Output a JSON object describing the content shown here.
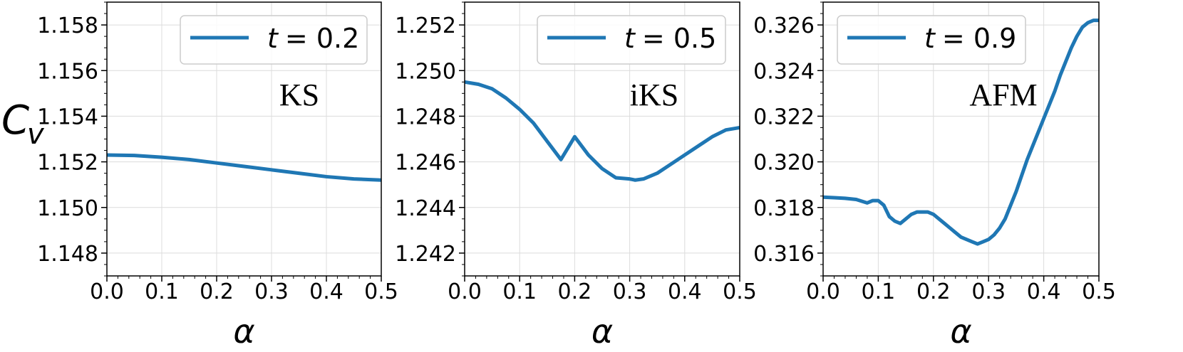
{
  "figure": {
    "ylabel_main": "C",
    "ylabel_sub": "v",
    "xlabel": "α"
  },
  "chart_data": [
    {
      "type": "line",
      "legend": "t = 0.2",
      "legend_var": "t",
      "legend_value": "= 0.2",
      "annotation": "KS",
      "xlabel": "α",
      "xlim": [
        0.0,
        0.5
      ],
      "ylim": [
        1.147,
        1.159
      ],
      "xticks": [
        "0.0",
        "0.1",
        "0.2",
        "0.3",
        "0.4",
        "0.5"
      ],
      "yticks": [
        "1.148",
        "1.150",
        "1.152",
        "1.154",
        "1.156",
        "1.158"
      ],
      "legend_location": "upper right",
      "grid": true,
      "color": "#1f77b4",
      "series": [
        {
          "x": [
            0.0,
            0.05,
            0.1,
            0.15,
            0.2,
            0.25,
            0.3,
            0.35,
            0.4,
            0.45,
            0.5
          ],
          "y": [
            1.1523,
            1.15228,
            1.1522,
            1.1521,
            1.15195,
            1.1518,
            1.15165,
            1.1515,
            1.15135,
            1.15125,
            1.1512
          ]
        }
      ]
    },
    {
      "type": "line",
      "legend": "t = 0.5",
      "legend_var": "t",
      "legend_value": "= 0.5",
      "annotation": "iKS",
      "xlabel": "α",
      "xlim": [
        0.0,
        0.5
      ],
      "ylim": [
        1.241,
        1.253
      ],
      "xticks": [
        "0.0",
        "0.1",
        "0.2",
        "0.3",
        "0.4",
        "0.5"
      ],
      "yticks": [
        "1.242",
        "1.244",
        "1.246",
        "1.248",
        "1.250",
        "1.252"
      ],
      "legend_location": "upper right",
      "grid": true,
      "color": "#1f77b4",
      "series": [
        {
          "x": [
            0.0,
            0.025,
            0.05,
            0.075,
            0.1,
            0.125,
            0.15,
            0.175,
            0.2,
            0.225,
            0.25,
            0.275,
            0.3,
            0.31,
            0.325,
            0.35,
            0.375,
            0.4,
            0.425,
            0.45,
            0.475,
            0.5
          ],
          "y": [
            1.2495,
            1.2494,
            1.2492,
            1.2488,
            1.2483,
            1.2477,
            1.2469,
            1.2461,
            1.2471,
            1.2463,
            1.2457,
            1.2453,
            1.24525,
            1.2452,
            1.24525,
            1.2455,
            1.2459,
            1.2463,
            1.2467,
            1.2471,
            1.2474,
            1.2475
          ]
        }
      ]
    },
    {
      "type": "line",
      "legend": "t = 0.9",
      "legend_var": "t",
      "legend_value": "= 0.9",
      "annotation": "AFM",
      "xlabel": "α",
      "xlim": [
        0.0,
        0.5
      ],
      "ylim": [
        0.315,
        0.327
      ],
      "xticks": [
        "0.0",
        "0.1",
        "0.2",
        "0.3",
        "0.4",
        "0.5"
      ],
      "yticks": [
        "0.316",
        "0.318",
        "0.320",
        "0.322",
        "0.324",
        "0.326"
      ],
      "legend_location": "upper left",
      "grid": true,
      "color": "#1f77b4",
      "series": [
        {
          "x": [
            0.0,
            0.02,
            0.04,
            0.06,
            0.08,
            0.09,
            0.1,
            0.11,
            0.12,
            0.13,
            0.14,
            0.15,
            0.16,
            0.17,
            0.18,
            0.19,
            0.2,
            0.21,
            0.22,
            0.23,
            0.24,
            0.25,
            0.26,
            0.27,
            0.28,
            0.29,
            0.3,
            0.31,
            0.32,
            0.33,
            0.34,
            0.35,
            0.36,
            0.37,
            0.38,
            0.39,
            0.4,
            0.41,
            0.42,
            0.43,
            0.44,
            0.45,
            0.46,
            0.47,
            0.48,
            0.49,
            0.5
          ],
          "y": [
            0.31845,
            0.31843,
            0.3184,
            0.31835,
            0.3182,
            0.3183,
            0.3183,
            0.3181,
            0.3176,
            0.3174,
            0.3173,
            0.3175,
            0.3177,
            0.3178,
            0.3178,
            0.3178,
            0.3177,
            0.3175,
            0.3173,
            0.3171,
            0.3169,
            0.3167,
            0.3166,
            0.3165,
            0.3164,
            0.3165,
            0.3166,
            0.3168,
            0.3171,
            0.3175,
            0.3181,
            0.3187,
            0.3194,
            0.3201,
            0.3207,
            0.3213,
            0.3219,
            0.3225,
            0.3231,
            0.3238,
            0.3244,
            0.325,
            0.3255,
            0.3259,
            0.3261,
            0.3262,
            0.3262
          ]
        }
      ]
    }
  ]
}
